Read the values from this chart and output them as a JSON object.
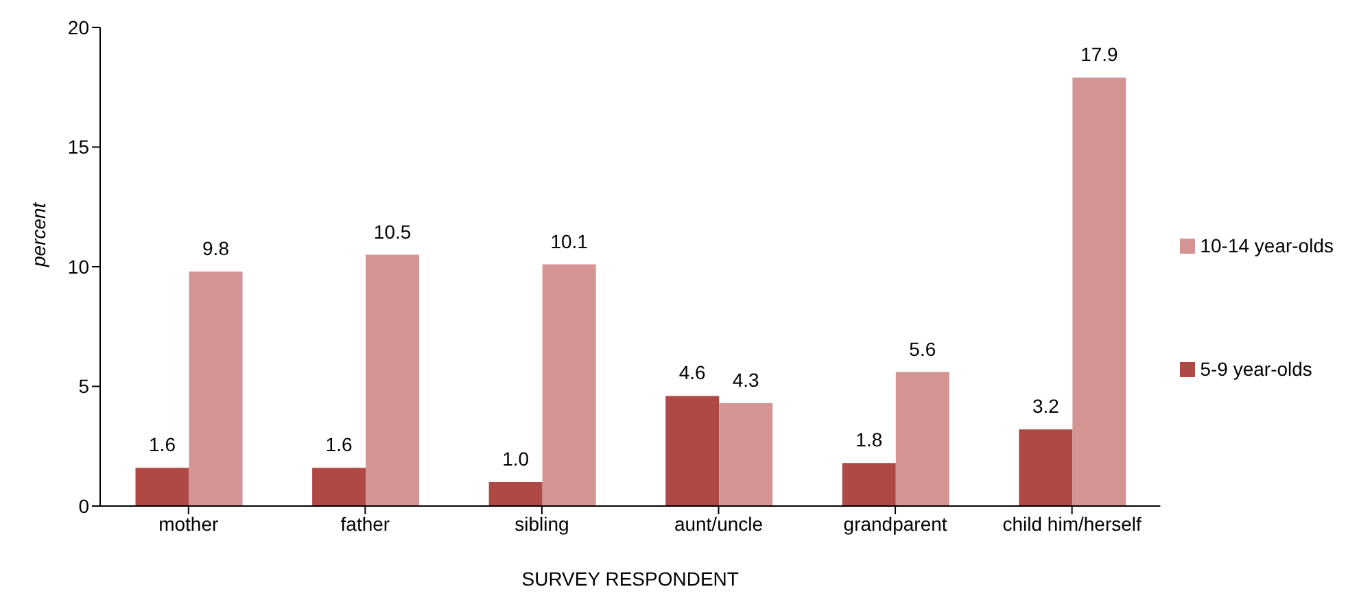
{
  "chart_data": {
    "type": "bar",
    "xlabel": "SURVEY RESPONDENT",
    "ylabel": "percent",
    "categories": [
      "mother",
      "father",
      "sibling",
      "aunt/uncle",
      "grandparent",
      "child him/herself"
    ],
    "series": [
      {
        "name": "5-9 year-olds",
        "color": "#ae4945",
        "values": [
          1.6,
          1.6,
          1.0,
          4.6,
          1.8,
          3.2
        ],
        "value_labels": [
          "1.6",
          "1.6",
          "1.0",
          "4.6",
          "1.8",
          "3.2"
        ]
      },
      {
        "name": "10-14 year-olds",
        "color": "#d49494",
        "values": [
          9.8,
          10.5,
          10.1,
          4.3,
          5.6,
          17.9
        ],
        "value_labels": [
          "9.8",
          "10.5",
          "10.1",
          "4.3",
          "5.6",
          "17.9"
        ]
      }
    ],
    "ylim": [
      0,
      20
    ],
    "yticks": [
      0,
      5,
      10,
      15,
      20
    ],
    "grid": false,
    "legend": "right"
  }
}
